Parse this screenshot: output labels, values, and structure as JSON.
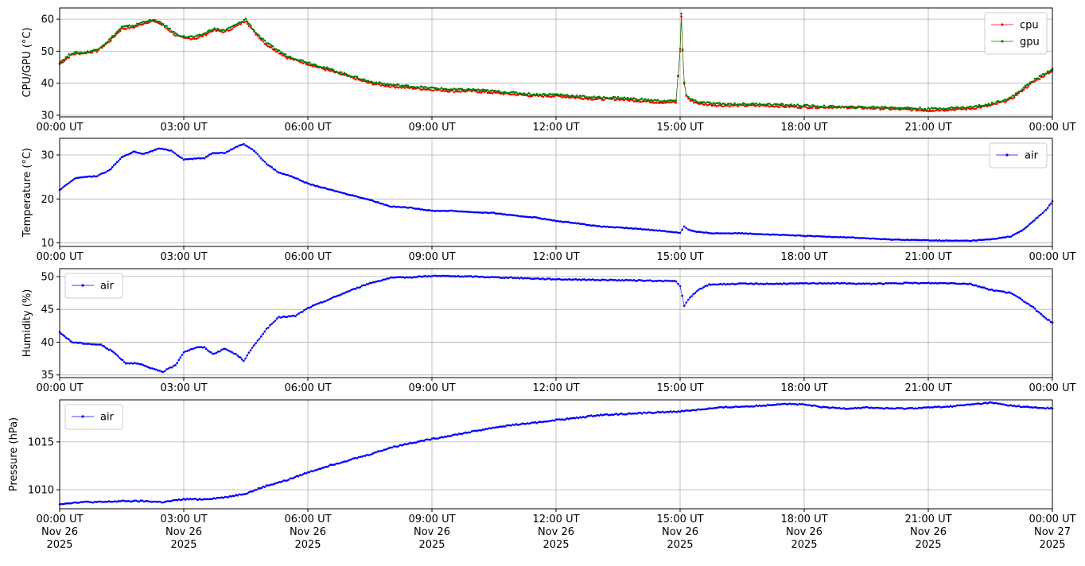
{
  "chart_data": [
    {
      "type": "scatter",
      "ylabel": "CPU/GPU (°C)",
      "ylim": [
        29.5,
        63.5
      ],
      "yticks": [
        30,
        40,
        50,
        60
      ],
      "xlim": [
        0,
        24
      ],
      "xticks": [
        0,
        3,
        6,
        9,
        12,
        15,
        18,
        21,
        24
      ],
      "xtick_labels": [
        "00:00 UT",
        "03:00 UT",
        "06:00 UT",
        "09:00 UT",
        "12:00 UT",
        "15:00 UT",
        "18:00 UT",
        "21:00 UT",
        "00:00 UT"
      ],
      "grid": true,
      "legend": "top-right",
      "series": [
        {
          "name": "cpu",
          "color": "#ff0000",
          "x": [
            0,
            0.3,
            0.6,
            0.9,
            1.2,
            1.5,
            1.8,
            2.1,
            2.3,
            2.5,
            2.8,
            3.0,
            3.3,
            3.5,
            3.7,
            4.0,
            4.3,
            4.5,
            4.7,
            5.0,
            5.5,
            6.0,
            6.5,
            7.0,
            7.5,
            8.0,
            8.5,
            9.0,
            9.5,
            10.0,
            10.5,
            11.0,
            11.5,
            12.0,
            12.5,
            13.0,
            13.5,
            14.0,
            14.5,
            14.9,
            15.0,
            15.03,
            15.06,
            15.1,
            15.15,
            15.25,
            15.5,
            16.0,
            17.0,
            18.0,
            19.0,
            20.0,
            21.0,
            22.0,
            22.5,
            23.0,
            23.5,
            24.0
          ],
          "y": [
            46,
            49,
            49.5,
            50,
            53,
            57,
            57.5,
            59,
            59.5,
            58,
            55,
            54,
            54,
            55,
            56.5,
            56,
            58,
            59.5,
            56,
            52,
            48,
            46,
            44,
            42,
            40,
            39,
            38.5,
            38,
            37.5,
            37.5,
            37,
            36.5,
            36,
            36,
            35.5,
            35,
            35,
            34.5,
            34,
            34,
            50,
            61,
            50,
            40,
            36,
            34.5,
            33.5,
            33,
            33,
            32.5,
            32.5,
            32,
            31.5,
            32,
            33,
            35,
            40,
            44
          ]
        },
        {
          "name": "gpu",
          "color": "#008000",
          "x": [
            0,
            0.3,
            0.6,
            0.9,
            1.2,
            1.5,
            1.8,
            2.1,
            2.3,
            2.5,
            2.8,
            3.0,
            3.3,
            3.5,
            3.7,
            4.0,
            4.3,
            4.5,
            4.7,
            5.0,
            5.5,
            6.0,
            6.5,
            7.0,
            7.5,
            8.0,
            8.5,
            9.0,
            9.5,
            10.0,
            10.5,
            11.0,
            11.5,
            12.0,
            12.5,
            13.0,
            13.5,
            14.0,
            14.5,
            14.9,
            15.0,
            15.03,
            15.06,
            15.1,
            15.15,
            15.25,
            15.5,
            16.0,
            17.0,
            18.0,
            19.0,
            20.0,
            21.0,
            22.0,
            22.5,
            23.0,
            23.5,
            24.0
          ],
          "y": [
            46.5,
            49.5,
            49.5,
            50.5,
            53.5,
            57.5,
            58,
            59.5,
            59.5,
            58.5,
            55.5,
            54.5,
            54.5,
            55.5,
            57,
            56.5,
            58.5,
            60,
            56.5,
            52.5,
            48.5,
            46.5,
            44.5,
            42.5,
            40.5,
            39.5,
            39,
            38.5,
            38,
            38,
            37.5,
            37,
            36.5,
            36.5,
            36,
            35.5,
            35.5,
            35,
            34.5,
            34.5,
            50.5,
            61.5,
            50.5,
            40.5,
            36.5,
            35,
            34,
            33.5,
            33.5,
            33,
            32.5,
            32.5,
            32,
            32.5,
            33.5,
            35.5,
            40.5,
            44.5
          ]
        }
      ]
    },
    {
      "type": "scatter",
      "ylabel": "Temperature (°C)",
      "ylim": [
        9.2,
        33.8
      ],
      "yticks": [
        10,
        20,
        30
      ],
      "xlim": [
        0,
        24
      ],
      "xticks": [
        0,
        3,
        6,
        9,
        12,
        15,
        18,
        21,
        24
      ],
      "xtick_labels": [
        "00:00 UT",
        "03:00 UT",
        "06:00 UT",
        "09:00 UT",
        "12:00 UT",
        "15:00 UT",
        "18:00 UT",
        "21:00 UT",
        "00:00 UT"
      ],
      "grid": true,
      "legend": "top-right",
      "series": [
        {
          "name": "air",
          "color": "#0000ff",
          "x": [
            0,
            0.2,
            0.4,
            0.6,
            0.9,
            1.2,
            1.5,
            1.8,
            2.0,
            2.2,
            2.4,
            2.7,
            3.0,
            3.3,
            3.5,
            3.7,
            4.0,
            4.3,
            4.45,
            4.7,
            5.0,
            5.3,
            5.6,
            6.0,
            6.5,
            7.0,
            7.5,
            8.0,
            8.5,
            9.0,
            9.5,
            10.0,
            10.5,
            11.0,
            11.5,
            12.0,
            12.5,
            13.0,
            13.5,
            14.0,
            14.5,
            15.0,
            15.1,
            15.2,
            15.4,
            15.8,
            16.5,
            17.0,
            18.0,
            19.0,
            20.0,
            21.0,
            21.5,
            22.0,
            22.5,
            23.0,
            23.3,
            23.6,
            23.85,
            24.0
          ],
          "y": [
            22,
            23.5,
            24.8,
            25,
            25.2,
            26.5,
            29.5,
            30.8,
            30.2,
            30.8,
            31.5,
            31,
            29,
            29.2,
            29.3,
            30.5,
            30.5,
            32,
            32.5,
            31,
            28,
            26,
            25.2,
            23.5,
            22.2,
            21,
            19.8,
            18.3,
            18,
            17.3,
            17.3,
            17,
            16.8,
            16.2,
            15.8,
            15,
            14.5,
            13.8,
            13.5,
            13.2,
            12.8,
            12.3,
            13.8,
            13,
            12.5,
            12.2,
            12.2,
            12,
            11.6,
            11.3,
            10.8,
            10.6,
            10.5,
            10.5,
            10.8,
            11.5,
            13,
            15.5,
            17.5,
            19.5
          ]
        }
      ]
    },
    {
      "type": "scatter",
      "ylabel": "Humidity (%)",
      "ylim": [
        34.6,
        51.2
      ],
      "yticks": [
        35,
        40,
        45,
        50
      ],
      "xlim": [
        0,
        24
      ],
      "xticks": [
        0,
        3,
        6,
        9,
        12,
        15,
        18,
        21,
        24
      ],
      "xtick_labels": [
        "00:00 UT",
        "03:00 UT",
        "06:00 UT",
        "09:00 UT",
        "12:00 UT",
        "15:00 UT",
        "18:00 UT",
        "21:00 UT",
        "00:00 UT"
      ],
      "grid": true,
      "legend": "top-left",
      "series": [
        {
          "name": "air",
          "color": "#0000ff",
          "x": [
            0,
            0.3,
            0.6,
            1.0,
            1.3,
            1.6,
            1.9,
            2.2,
            2.5,
            2.8,
            3.0,
            3.3,
            3.5,
            3.7,
            4.0,
            4.3,
            4.45,
            4.7,
            5.0,
            5.3,
            5.7,
            6.0,
            6.5,
            7.0,
            7.5,
            8.0,
            8.5,
            9.0,
            10.0,
            11.0,
            12.0,
            13.0,
            14.0,
            14.9,
            15.0,
            15.05,
            15.1,
            15.2,
            15.4,
            15.7,
            16.5,
            17.5,
            18.5,
            19.5,
            20.5,
            21.5,
            22.0,
            22.5,
            23.0,
            23.5,
            23.8,
            24.0
          ],
          "y": [
            41.5,
            40,
            39.8,
            39.6,
            38.5,
            36.8,
            36.8,
            36,
            35.5,
            36.5,
            38.5,
            39.2,
            39.2,
            38.2,
            39,
            38,
            37.2,
            39.5,
            42,
            43.8,
            44,
            45.2,
            46.5,
            47.8,
            49,
            49.8,
            49.9,
            50.1,
            50,
            49.8,
            49.6,
            49.5,
            49.4,
            49.3,
            48.5,
            47,
            45.5,
            46.5,
            47.8,
            48.8,
            48.9,
            48.9,
            49,
            48.9,
            49,
            49,
            48.9,
            48,
            47.5,
            45.5,
            43.8,
            43
          ]
        }
      ]
    },
    {
      "type": "scatter",
      "ylabel": "Pressure (hPa)",
      "ylim": [
        1008,
        1019.4
      ],
      "yticks": [
        1010,
        1015
      ],
      "xlim": [
        0,
        24
      ],
      "xticks": [
        0,
        3,
        6,
        9,
        12,
        15,
        18,
        21,
        24
      ],
      "xtick_labels": [
        [
          "00:00 UT",
          "Nov 26",
          "2025"
        ],
        [
          "03:00 UT",
          "Nov 26",
          "2025"
        ],
        [
          "06:00 UT",
          "Nov 26",
          "2025"
        ],
        [
          "09:00 UT",
          "Nov 26",
          "2025"
        ],
        [
          "12:00 UT",
          "Nov 26",
          "2025"
        ],
        [
          "15:00 UT",
          "Nov 26",
          "2025"
        ],
        [
          "18:00 UT",
          "Nov 26",
          "2025"
        ],
        [
          "21:00 UT",
          "Nov 26",
          "2025"
        ],
        [
          "00:00 UT",
          "Nov 27",
          "2025"
        ]
      ],
      "grid": true,
      "legend": "top-left",
      "series": [
        {
          "name": "air",
          "color": "#0000ff",
          "x": [
            0,
            0.5,
            1.0,
            1.5,
            2.0,
            2.5,
            3.0,
            3.5,
            4.0,
            4.5,
            5.0,
            5.5,
            6.0,
            6.5,
            7.0,
            7.5,
            8.0,
            8.5,
            9.0,
            9.5,
            10.0,
            10.5,
            11.0,
            11.5,
            12.0,
            12.5,
            13.0,
            13.5,
            14.0,
            14.5,
            15.0,
            15.5,
            16.0,
            16.5,
            17.0,
            17.5,
            18.0,
            18.5,
            19.0,
            19.5,
            20.0,
            20.5,
            21.0,
            21.5,
            22.0,
            22.5,
            23.0,
            23.5,
            24.0
          ],
          "y": [
            1008.5,
            1008.7,
            1008.7,
            1008.8,
            1008.8,
            1008.7,
            1009.0,
            1009.0,
            1009.2,
            1009.6,
            1010.4,
            1011.0,
            1011.8,
            1012.5,
            1013.1,
            1013.7,
            1014.4,
            1014.9,
            1015.3,
            1015.7,
            1016.1,
            1016.5,
            1016.8,
            1017.0,
            1017.3,
            1017.5,
            1017.8,
            1017.9,
            1018.0,
            1018.1,
            1018.2,
            1018.4,
            1018.6,
            1018.7,
            1018.8,
            1019.0,
            1018.9,
            1018.6,
            1018.5,
            1018.6,
            1018.5,
            1018.5,
            1018.6,
            1018.7,
            1018.9,
            1019.1,
            1018.8,
            1018.6,
            1018.5
          ]
        }
      ]
    }
  ]
}
